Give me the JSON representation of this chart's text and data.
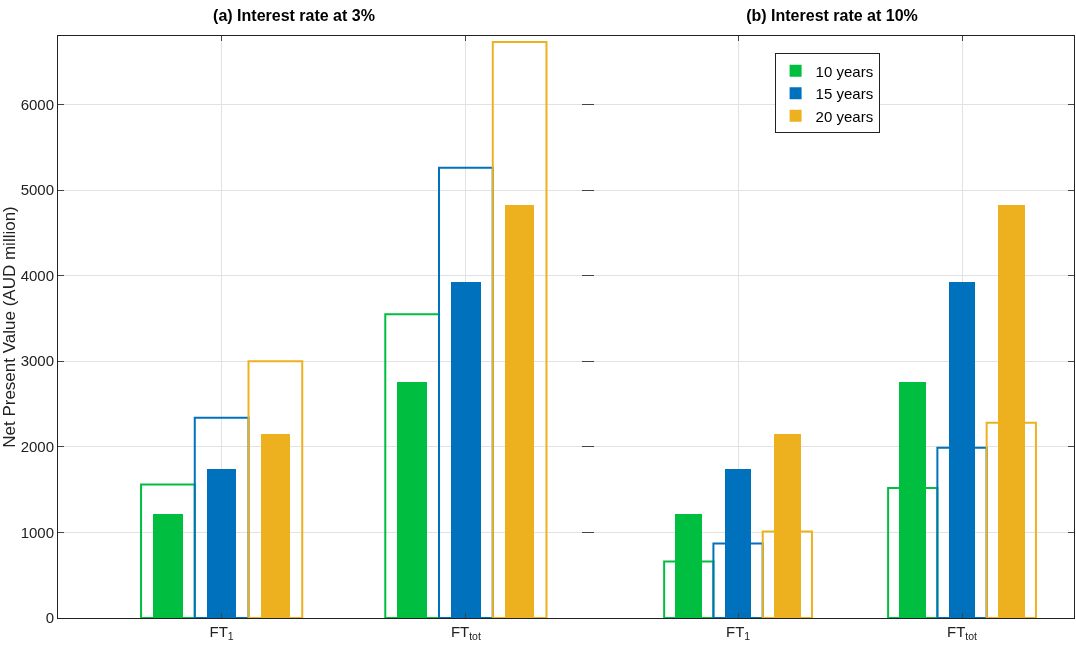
{
  "chart_data": [
    {
      "type": "bar",
      "title": "(a) Interest rate at 3%",
      "ylabel": "Net Present Value (AUD million)",
      "categories": [
        "FT$_{1}$",
        "FT$_{tot}$"
      ],
      "ylim": [
        0,
        6800
      ],
      "yticks": [
        0,
        1000,
        2000,
        3000,
        4000,
        5000,
        6000
      ],
      "grid": true,
      "series": [
        {
          "color": "#00bf40",
          "values": [
            1560,
            3550
          ]
        },
        {
          "color": "#0072bd",
          "values": [
            2340,
            5260
          ]
        },
        {
          "color": "#edb120",
          "values": [
            3000,
            6730
          ]
        },
        {
          "color": "#00bf40",
          "values": [
            1210,
            2760
          ]
        },
        {
          "color": "#0072bd",
          "values": [
            1740,
            3920
          ]
        },
        {
          "color": "#edb120",
          "values": [
            2150,
            4830
          ]
        }
      ]
    },
    {
      "type": "bar",
      "title": "(b) Interest rate at 10%",
      "categories": [
        "FT$_{1}$",
        "FT$_{tot}$"
      ],
      "ylim": [
        0,
        6800
      ],
      "yticks": [
        0,
        1000,
        2000,
        3000,
        4000,
        5000,
        6000
      ],
      "grid": true,
      "tick_labels": "x",
      "legend": "top right",
      "series": [
        {
          "color": "#00bf40",
          "values": [
            660,
            1520
          ]
        },
        {
          "color": "#0072bd",
          "values": [
            870,
            1990
          ]
        },
        {
          "color": "#edb120",
          "values": [
            1010,
            2280
          ]
        },
        {
          "name": "10 years",
          "color": "#00bf40",
          "values": [
            1210,
            2760
          ]
        },
        {
          "name": "15 years",
          "color": "#0072bd",
          "values": [
            1740,
            3920
          ]
        },
        {
          "name": "20 years",
          "color": "#edb120",
          "values": [
            2150,
            4830
          ]
        }
      ]
    }
  ]
}
